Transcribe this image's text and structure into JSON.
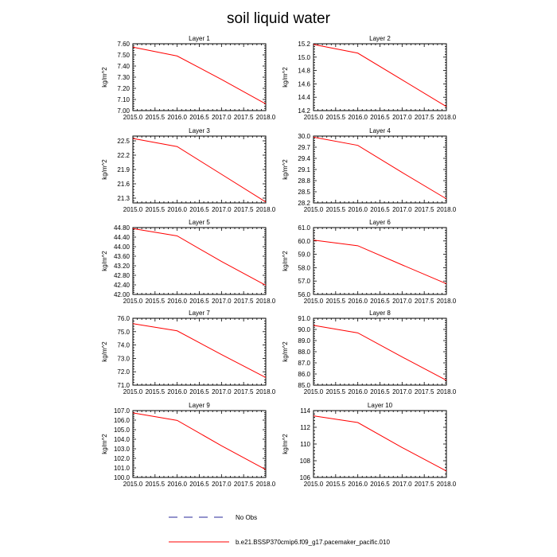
{
  "title": "soil liquid water",
  "colors": {
    "model": "#ff0000",
    "obs": "#2a2a9a",
    "axis": "#000000"
  },
  "legend": {
    "obs_label": "No Obs",
    "model_label": "b.e21.BSSP370cmip6.f09_g17.pacemaker_pacific.010"
  },
  "chart_data": [
    {
      "type": "line",
      "title": "Layer 1",
      "ylabel": "kg/m^2",
      "xlim": [
        2015.0,
        2018.0
      ],
      "ylim": [
        7.0,
        7.6
      ],
      "xticks": [
        "2015.0",
        "2015.5",
        "2016.0",
        "2016.5",
        "2017.0",
        "2017.5",
        "2018.0"
      ],
      "yticks": [
        "7.00",
        "7.10",
        "7.20",
        "7.30",
        "7.40",
        "7.50",
        "7.60"
      ],
      "series": [
        {
          "x": [
            2015,
            2016,
            2017,
            2018
          ],
          "values": [
            7.57,
            7.49,
            7.28,
            7.06
          ]
        }
      ]
    },
    {
      "type": "line",
      "title": "Layer 2",
      "ylabel": "kg/m^2",
      "xlim": [
        2015.0,
        2018.0
      ],
      "ylim": [
        14.2,
        15.2
      ],
      "xticks": [
        "2015.0",
        "2015.5",
        "2016.0",
        "2016.5",
        "2017.0",
        "2017.5",
        "2018.0"
      ],
      "yticks": [
        "14.2",
        "14.4",
        "14.6",
        "14.8",
        "15.0",
        "15.2"
      ],
      "series": [
        {
          "x": [
            2015,
            2016,
            2017,
            2018
          ],
          "values": [
            15.19,
            15.06,
            14.66,
            14.26
          ]
        }
      ]
    },
    {
      "type": "line",
      "title": "Layer 3",
      "ylabel": "kg/m^2",
      "xlim": [
        2015.0,
        2018.0
      ],
      "ylim": [
        21.2,
        22.6
      ],
      "xticks": [
        "2015.0",
        "2015.5",
        "2016.0",
        "2016.5",
        "2017.0",
        "2017.5",
        "2018.0"
      ],
      "yticks": [
        "21.3",
        "21.6",
        "21.9",
        "22.2",
        "22.5"
      ],
      "series": [
        {
          "x": [
            2015,
            2016,
            2017,
            2018
          ],
          "values": [
            22.55,
            22.38,
            21.8,
            21.22
          ]
        }
      ]
    },
    {
      "type": "line",
      "title": "Layer 4",
      "ylabel": "kg/m^2",
      "xlim": [
        2015.0,
        2018.0
      ],
      "ylim": [
        28.2,
        30.0
      ],
      "xticks": [
        "2015.0",
        "2015.5",
        "2016.0",
        "2016.5",
        "2017.0",
        "2017.5",
        "2018.0"
      ],
      "yticks": [
        "28.2",
        "28.5",
        "28.8",
        "29.1",
        "29.4",
        "29.7",
        "30.0"
      ],
      "series": [
        {
          "x": [
            2015,
            2016,
            2017,
            2018
          ],
          "values": [
            29.97,
            29.75,
            29.02,
            28.31
          ]
        }
      ]
    },
    {
      "type": "line",
      "title": "Layer 5",
      "ylabel": "kg/m^2",
      "xlim": [
        2015.0,
        2018.0
      ],
      "ylim": [
        42.0,
        44.8
      ],
      "xticks": [
        "2015.0",
        "2015.5",
        "2016.0",
        "2016.5",
        "2017.0",
        "2017.5",
        "2018.0"
      ],
      "yticks": [
        "42.00",
        "42.40",
        "42.80",
        "43.20",
        "43.60",
        "44.00",
        "44.40",
        "44.80"
      ],
      "series": [
        {
          "x": [
            2015,
            2016,
            2017,
            2018
          ],
          "values": [
            44.76,
            44.45,
            43.38,
            42.38
          ]
        }
      ]
    },
    {
      "type": "line",
      "title": "Layer 6",
      "ylabel": "kg/m^2",
      "xlim": [
        2015.0,
        2018.0
      ],
      "ylim": [
        56.0,
        61.0
      ],
      "xticks": [
        "2015.0",
        "2015.5",
        "2016.0",
        "2016.5",
        "2017.0",
        "2017.5",
        "2018.0"
      ],
      "yticks": [
        "56.0",
        "57.0",
        "58.0",
        "59.0",
        "60.0",
        "61.0"
      ],
      "series": [
        {
          "x": [
            2015,
            2016,
            2017,
            2018
          ],
          "values": [
            60.06,
            59.64,
            58.21,
            56.8
          ]
        }
      ]
    },
    {
      "type": "line",
      "title": "Layer 7",
      "ylabel": "kg/m^2",
      "xlim": [
        2015.0,
        2018.0
      ],
      "ylim": [
        71.0,
        76.0
      ],
      "xticks": [
        "2015.0",
        "2015.5",
        "2016.0",
        "2016.5",
        "2017.0",
        "2017.5",
        "2018.0"
      ],
      "yticks": [
        "71.0",
        "72.0",
        "73.0",
        "74.0",
        "75.0",
        "76.0"
      ],
      "series": [
        {
          "x": [
            2015,
            2016,
            2017,
            2018
          ],
          "values": [
            75.6,
            75.06,
            73.29,
            71.57
          ]
        }
      ]
    },
    {
      "type": "line",
      "title": "Layer 8",
      "ylabel": "kg/m^2",
      "xlim": [
        2015.0,
        2018.0
      ],
      "ylim": [
        85.0,
        91.0
      ],
      "xticks": [
        "2015.0",
        "2015.5",
        "2016.0",
        "2016.5",
        "2017.0",
        "2017.5",
        "2018.0"
      ],
      "yticks": [
        "85.0",
        "86.0",
        "87.0",
        "88.0",
        "89.0",
        "90.0",
        "91.0"
      ],
      "series": [
        {
          "x": [
            2015,
            2016,
            2017,
            2018
          ],
          "values": [
            90.37,
            89.69,
            87.53,
            85.43
          ]
        }
      ]
    },
    {
      "type": "line",
      "title": "Layer 9",
      "ylabel": "kg/m^2",
      "xlim": [
        2015.0,
        2018.0
      ],
      "ylim": [
        100.0,
        107.0
      ],
      "xticks": [
        "2015.0",
        "2015.5",
        "2016.0",
        "2016.5",
        "2017.0",
        "2017.5",
        "2018.0"
      ],
      "yticks": [
        "100.0",
        "101.0",
        "102.0",
        "103.0",
        "104.0",
        "105.0",
        "106.0",
        "107.0"
      ],
      "series": [
        {
          "x": [
            2015,
            2016,
            2017,
            2018
          ],
          "values": [
            106.76,
            105.97,
            103.32,
            100.82
          ]
        }
      ]
    },
    {
      "type": "line",
      "title": "Layer 10",
      "ylabel": "kg/m^2",
      "xlim": [
        2015.0,
        2018.0
      ],
      "ylim": [
        106.0,
        114.0
      ],
      "xticks": [
        "2015.0",
        "2015.5",
        "2016.0",
        "2016.5",
        "2017.0",
        "2017.5",
        "2018.0"
      ],
      "yticks": [
        "106",
        "108",
        "110",
        "112",
        "114"
      ],
      "series": [
        {
          "x": [
            2015,
            2016,
            2017,
            2018
          ],
          "values": [
            113.37,
            112.57,
            109.58,
            106.77
          ]
        }
      ]
    }
  ]
}
